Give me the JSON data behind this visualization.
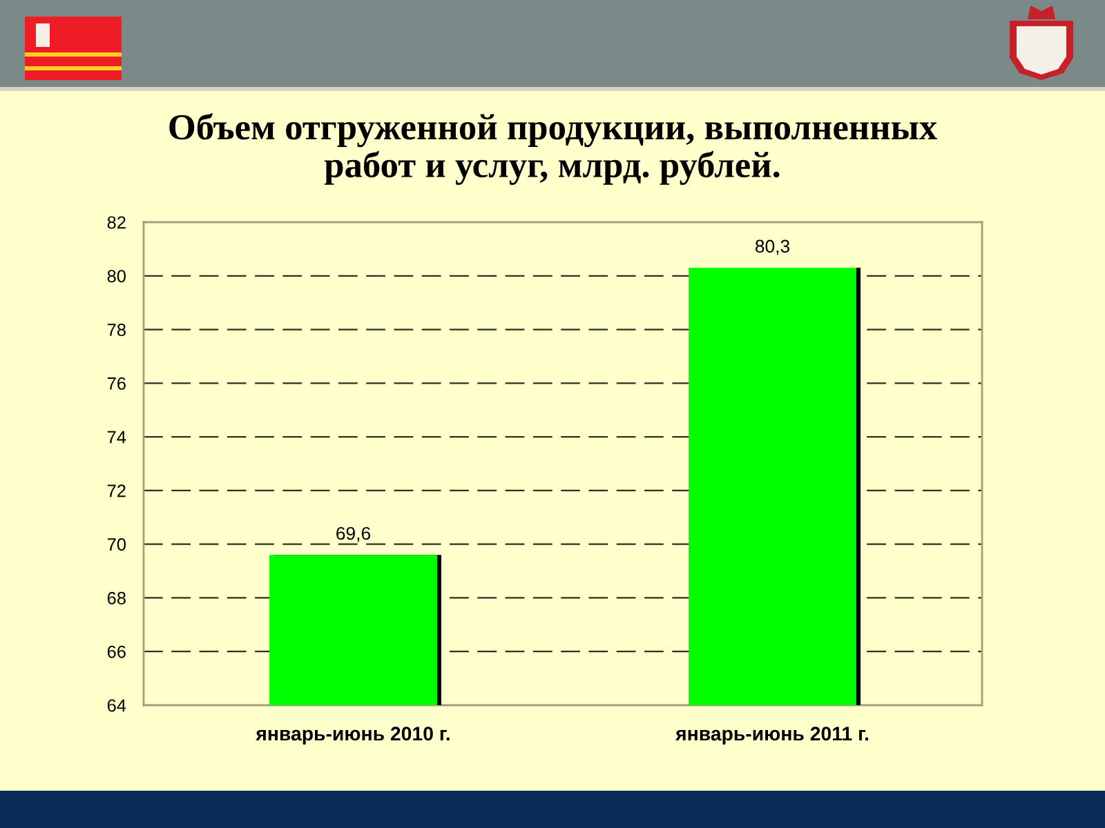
{
  "chart_data": {
    "type": "bar",
    "title": "Объем отгруженной продукции, выполненных работ и услуг, млрд. рублей.",
    "categories": [
      "январь-июнь 2010 г.",
      "январь-июнь 2011 г."
    ],
    "values": [
      69.6,
      80.3
    ],
    "color": "#00ff00",
    "value_labels": [
      "69,6",
      "80,3"
    ],
    "ylim": [
      64,
      82
    ],
    "yticks": [
      64,
      66,
      68,
      70,
      72,
      74,
      76,
      78,
      80,
      82
    ],
    "grid": "y"
  }
}
